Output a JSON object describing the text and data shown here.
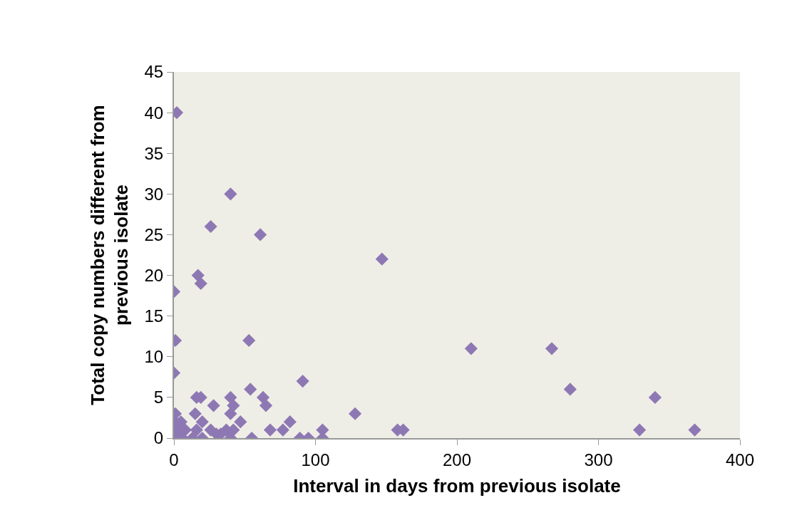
{
  "chart_data": {
    "type": "scatter",
    "xlabel": "Interval in days from previous isolate",
    "ylabel": "Total copy numbers different from previous isolate",
    "marker": "diamond",
    "grid": false,
    "xlim": [
      0,
      400
    ],
    "xticks": [
      0,
      100,
      200,
      300,
      400
    ],
    "ylim": [
      0,
      45
    ],
    "yticks": [
      0,
      5,
      10,
      15,
      20,
      25,
      30,
      35,
      40,
      45
    ],
    "series": [
      {
        "color": "#8e78b4",
        "x": [
          2,
          40,
          26,
          61,
          147,
          17,
          19,
          0,
          1,
          53,
          0,
          210,
          267,
          280,
          54,
          91,
          340,
          329,
          368,
          1,
          16,
          19,
          28,
          40,
          42,
          63,
          65,
          15,
          40,
          47,
          82,
          68,
          77,
          105,
          55,
          89,
          95,
          105,
          20,
          1,
          8,
          16,
          26,
          37,
          42,
          0,
          6,
          13,
          20,
          40,
          128,
          158,
          162,
          3,
          5,
          30,
          33
        ],
        "values": [
          40,
          30,
          26,
          25,
          22,
          20,
          19,
          18,
          12,
          12,
          8,
          11,
          11,
          6,
          6,
          7,
          5,
          1,
          1,
          3,
          5,
          5,
          4,
          5,
          4,
          5,
          4,
          3,
          3,
          2,
          2,
          1,
          1,
          1,
          0,
          0,
          0,
          0,
          2,
          2,
          1,
          1,
          1,
          1,
          1,
          0,
          0,
          0,
          0,
          0,
          3,
          1,
          1,
          1,
          2,
          0.5,
          0.5
        ]
      }
    ]
  }
}
